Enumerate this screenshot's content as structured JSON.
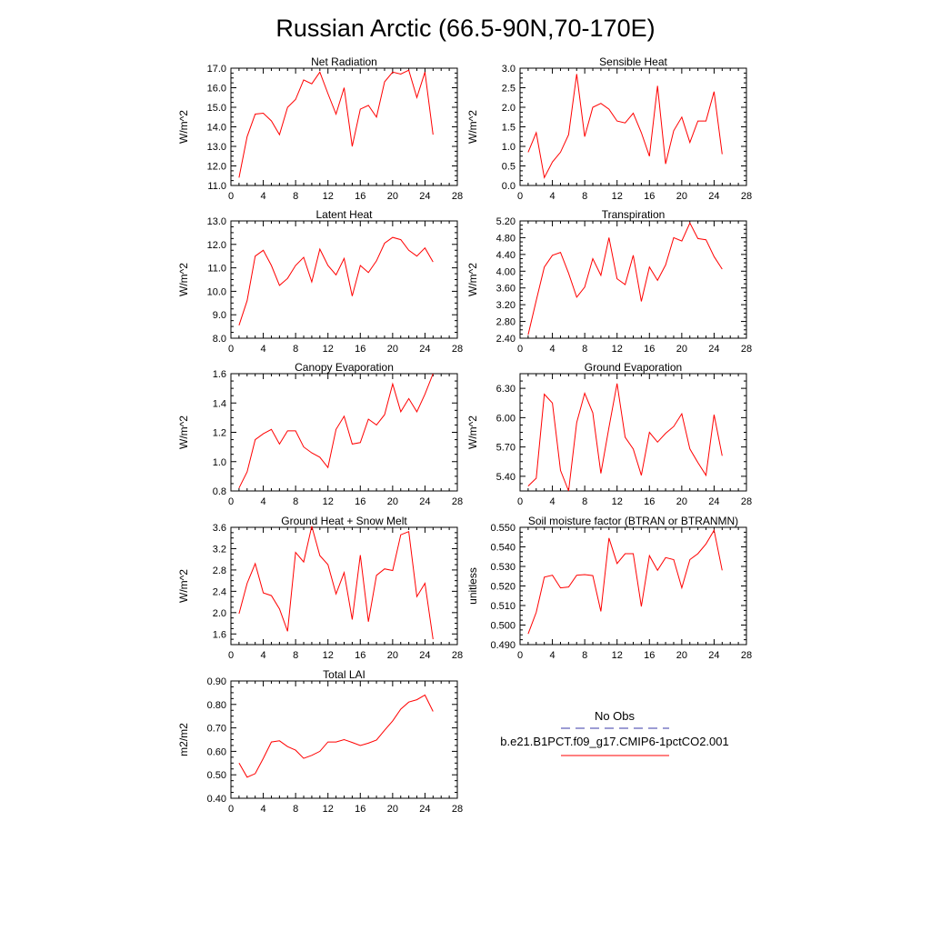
{
  "title": "Russian Arctic (66.5-90N,70-170E)",
  "legend": {
    "entries": [
      {
        "label": "No Obs",
        "color": "#3a3aa8",
        "style": "dashed"
      },
      {
        "label": "b.e21.B1PCT.f09_g17.CMIP6-1pctCO2.001",
        "color": "#ff0000",
        "style": "solid"
      }
    ]
  },
  "chart_data": [
    {
      "type": "line",
      "title": "Net Radiation",
      "ylabel": "W/m^2",
      "xlim": [
        0,
        28
      ],
      "xticks": [
        "0",
        "4",
        "8",
        "12",
        "16",
        "20",
        "24",
        "28"
      ],
      "ylim": [
        11.0,
        17.0
      ],
      "yticks": [
        "11.0",
        "12.0",
        "13.0",
        "14.0",
        "15.0",
        "16.0",
        "17.0"
      ],
      "x": [
        1,
        2,
        3,
        4,
        5,
        6,
        7,
        8,
        9,
        10,
        11,
        12,
        13,
        14,
        15,
        16,
        17,
        18,
        19,
        20,
        21,
        22,
        23,
        24,
        25
      ],
      "series": [
        {
          "color": "#ff0000",
          "values": [
            11.4,
            13.5,
            14.65,
            14.7,
            14.3,
            13.6,
            15.0,
            15.4,
            16.4,
            16.2,
            16.8,
            15.7,
            14.65,
            16.0,
            13.0,
            14.9,
            15.1,
            14.5,
            16.3,
            16.8,
            16.7,
            16.9,
            15.5,
            16.8,
            13.6
          ]
        }
      ]
    },
    {
      "type": "line",
      "title": "Sensible Heat",
      "ylabel": "W/m^2",
      "xlim": [
        0,
        28
      ],
      "xticks": [
        "0",
        "4",
        "8",
        "12",
        "16",
        "20",
        "24",
        "28"
      ],
      "ylim": [
        0.0,
        3.0
      ],
      "yticks": [
        "0.0",
        "0.5",
        "1.0",
        "1.5",
        "2.0",
        "2.5",
        "3.0"
      ],
      "x": [
        1,
        2,
        3,
        4,
        5,
        6,
        7,
        8,
        9,
        10,
        11,
        12,
        13,
        14,
        15,
        16,
        17,
        18,
        19,
        20,
        21,
        22,
        23,
        24,
        25
      ],
      "series": [
        {
          "color": "#ff0000",
          "values": [
            0.85,
            1.35,
            0.2,
            0.6,
            0.85,
            1.3,
            2.85,
            1.25,
            2.0,
            2.1,
            1.95,
            1.65,
            1.6,
            1.85,
            1.35,
            0.75,
            2.55,
            0.55,
            1.4,
            1.75,
            1.1,
            1.65,
            1.65,
            2.4,
            0.8
          ]
        }
      ]
    },
    {
      "type": "line",
      "title": "Latent Heat",
      "ylabel": "W/m^2",
      "xlim": [
        0,
        28
      ],
      "xticks": [
        "0",
        "4",
        "8",
        "12",
        "16",
        "20",
        "24",
        "28"
      ],
      "ylim": [
        8.0,
        13.0
      ],
      "yticks": [
        "8.0",
        "9.0",
        "10.0",
        "11.0",
        "12.0",
        "13.0"
      ],
      "x": [
        1,
        2,
        3,
        4,
        5,
        6,
        7,
        8,
        9,
        10,
        11,
        12,
        13,
        14,
        15,
        16,
        17,
        18,
        19,
        20,
        21,
        22,
        23,
        24,
        25
      ],
      "series": [
        {
          "color": "#ff0000",
          "values": [
            8.55,
            9.6,
            11.5,
            11.75,
            11.1,
            10.25,
            10.55,
            11.1,
            11.45,
            10.4,
            11.8,
            11.1,
            10.7,
            11.4,
            9.8,
            11.1,
            10.8,
            11.3,
            12.05,
            12.3,
            12.2,
            11.75,
            11.5,
            11.85,
            11.25
          ]
        }
      ]
    },
    {
      "type": "line",
      "title": "Transpiration",
      "ylabel": "W/m^2",
      "xlim": [
        0,
        28
      ],
      "xticks": [
        "0",
        "4",
        "8",
        "12",
        "16",
        "20",
        "24",
        "28"
      ],
      "ylim": [
        2.4,
        5.2
      ],
      "yticks": [
        "2.40",
        "2.80",
        "3.20",
        "3.60",
        "4.00",
        "4.40",
        "4.80",
        "5.20"
      ],
      "x": [
        1,
        2,
        3,
        4,
        5,
        6,
        7,
        8,
        9,
        10,
        11,
        12,
        13,
        14,
        15,
        16,
        17,
        18,
        19,
        20,
        21,
        22,
        23,
        24,
        25
      ],
      "series": [
        {
          "color": "#ff0000",
          "values": [
            2.48,
            3.3,
            4.1,
            4.38,
            4.45,
            3.95,
            3.38,
            3.62,
            4.3,
            3.9,
            4.8,
            3.82,
            3.68,
            4.38,
            3.28,
            4.1,
            3.78,
            4.15,
            4.8,
            4.72,
            5.15,
            4.78,
            4.75,
            4.35,
            4.05
          ]
        }
      ]
    },
    {
      "type": "line",
      "title": "Canopy Evaporation",
      "ylabel": "W/m^2",
      "xlim": [
        0,
        28
      ],
      "xticks": [
        "0",
        "4",
        "8",
        "12",
        "16",
        "20",
        "24",
        "28"
      ],
      "ylim": [
        0.8,
        1.6
      ],
      "yticks": [
        "0.8",
        "1.0",
        "1.2",
        "1.4",
        "1.6"
      ],
      "x": [
        1,
        2,
        3,
        4,
        5,
        6,
        7,
        8,
        9,
        10,
        11,
        12,
        13,
        14,
        15,
        16,
        17,
        18,
        19,
        20,
        21,
        22,
        23,
        24,
        25
      ],
      "series": [
        {
          "color": "#ff0000",
          "values": [
            0.82,
            0.93,
            1.15,
            1.19,
            1.22,
            1.12,
            1.21,
            1.21,
            1.1,
            1.06,
            1.03,
            0.96,
            1.22,
            1.31,
            1.12,
            1.13,
            1.29,
            1.25,
            1.32,
            1.53,
            1.34,
            1.43,
            1.34,
            1.46,
            1.6
          ]
        }
      ]
    },
    {
      "type": "line",
      "title": "Ground Evaporation",
      "ylabel": "W/m^2",
      "xlim": [
        0,
        28
      ],
      "xticks": [
        "0",
        "4",
        "8",
        "12",
        "16",
        "20",
        "24",
        "28"
      ],
      "ylim": [
        5.25,
        6.45
      ],
      "yticks": [
        "5.40",
        "5.70",
        "6.00",
        "6.30"
      ],
      "ytickvals": [
        5.4,
        5.7,
        6.0,
        6.3
      ],
      "x": [
        1,
        2,
        3,
        4,
        5,
        6,
        7,
        8,
        9,
        10,
        11,
        12,
        13,
        14,
        15,
        16,
        17,
        18,
        19,
        20,
        21,
        22,
        23,
        24,
        25
      ],
      "series": [
        {
          "color": "#ff0000",
          "values": [
            5.3,
            5.38,
            6.24,
            6.15,
            5.46,
            5.25,
            5.95,
            6.25,
            6.05,
            5.43,
            5.9,
            6.35,
            5.8,
            5.68,
            5.41,
            5.85,
            5.75,
            5.84,
            5.91,
            6.04,
            5.68,
            5.54,
            5.41,
            6.03,
            5.61
          ]
        }
      ]
    },
    {
      "type": "line",
      "title": "Ground Heat + Snow Melt",
      "ylabel": "W/m^2",
      "xlim": [
        0,
        28
      ],
      "xticks": [
        "0",
        "4",
        "8",
        "12",
        "16",
        "20",
        "24",
        "28"
      ],
      "ylim": [
        1.4,
        3.6
      ],
      "yticks": [
        "1.6",
        "2.0",
        "2.4",
        "2.8",
        "3.2",
        "3.6"
      ],
      "ytickvals": [
        1.6,
        2.0,
        2.4,
        2.8,
        3.2,
        3.6
      ],
      "x": [
        1,
        2,
        3,
        4,
        5,
        6,
        7,
        8,
        9,
        10,
        11,
        12,
        13,
        14,
        15,
        16,
        17,
        18,
        19,
        20,
        21,
        22,
        23,
        24,
        25
      ],
      "series": [
        {
          "color": "#ff0000",
          "values": [
            1.98,
            2.55,
            2.92,
            2.37,
            2.32,
            2.07,
            1.65,
            3.13,
            2.95,
            3.62,
            3.07,
            2.9,
            2.35,
            2.75,
            1.87,
            3.08,
            1.83,
            2.7,
            2.82,
            2.79,
            3.46,
            3.52,
            2.3,
            2.55,
            1.5
          ]
        }
      ]
    },
    {
      "type": "line",
      "title": "Soil moisture factor (BTRAN or BTRANMN)",
      "ylabel": "unitless",
      "xlim": [
        0,
        28
      ],
      "xticks": [
        "0",
        "4",
        "8",
        "12",
        "16",
        "20",
        "24",
        "28"
      ],
      "ylim": [
        0.49,
        0.55
      ],
      "yticks": [
        "0.490",
        "0.500",
        "0.510",
        "0.520",
        "0.530",
        "0.540",
        "0.550"
      ],
      "x": [
        1,
        2,
        3,
        4,
        5,
        6,
        7,
        8,
        9,
        10,
        11,
        12,
        13,
        14,
        15,
        16,
        17,
        18,
        19,
        20,
        21,
        22,
        23,
        24,
        25
      ],
      "series": [
        {
          "color": "#ff0000",
          "values": [
            0.4955,
            0.5065,
            0.5245,
            0.5255,
            0.519,
            0.5195,
            0.5255,
            0.5258,
            0.5253,
            0.507,
            0.5445,
            0.5315,
            0.5365,
            0.5365,
            0.5095,
            0.5355,
            0.528,
            0.5345,
            0.5335,
            0.519,
            0.5335,
            0.5365,
            0.5415,
            0.5485,
            0.528
          ]
        }
      ]
    },
    {
      "type": "line",
      "title": "Total LAI",
      "ylabel": "m2/m2",
      "xlim": [
        0,
        28
      ],
      "xticks": [
        "0",
        "4",
        "8",
        "12",
        "16",
        "20",
        "24",
        "28"
      ],
      "ylim": [
        0.4,
        0.9
      ],
      "yticks": [
        "0.40",
        "0.50",
        "0.60",
        "0.70",
        "0.80",
        "0.90"
      ],
      "x": [
        1,
        2,
        3,
        4,
        5,
        6,
        7,
        8,
        9,
        10,
        11,
        12,
        13,
        14,
        15,
        16,
        17,
        18,
        19,
        20,
        21,
        22,
        23,
        24,
        25
      ],
      "series": [
        {
          "color": "#ff0000",
          "values": [
            0.55,
            0.49,
            0.505,
            0.57,
            0.64,
            0.645,
            0.62,
            0.605,
            0.57,
            0.583,
            0.6,
            0.64,
            0.64,
            0.65,
            0.638,
            0.625,
            0.635,
            0.648,
            0.69,
            0.73,
            0.78,
            0.81,
            0.82,
            0.84,
            0.77
          ]
        }
      ]
    }
  ]
}
